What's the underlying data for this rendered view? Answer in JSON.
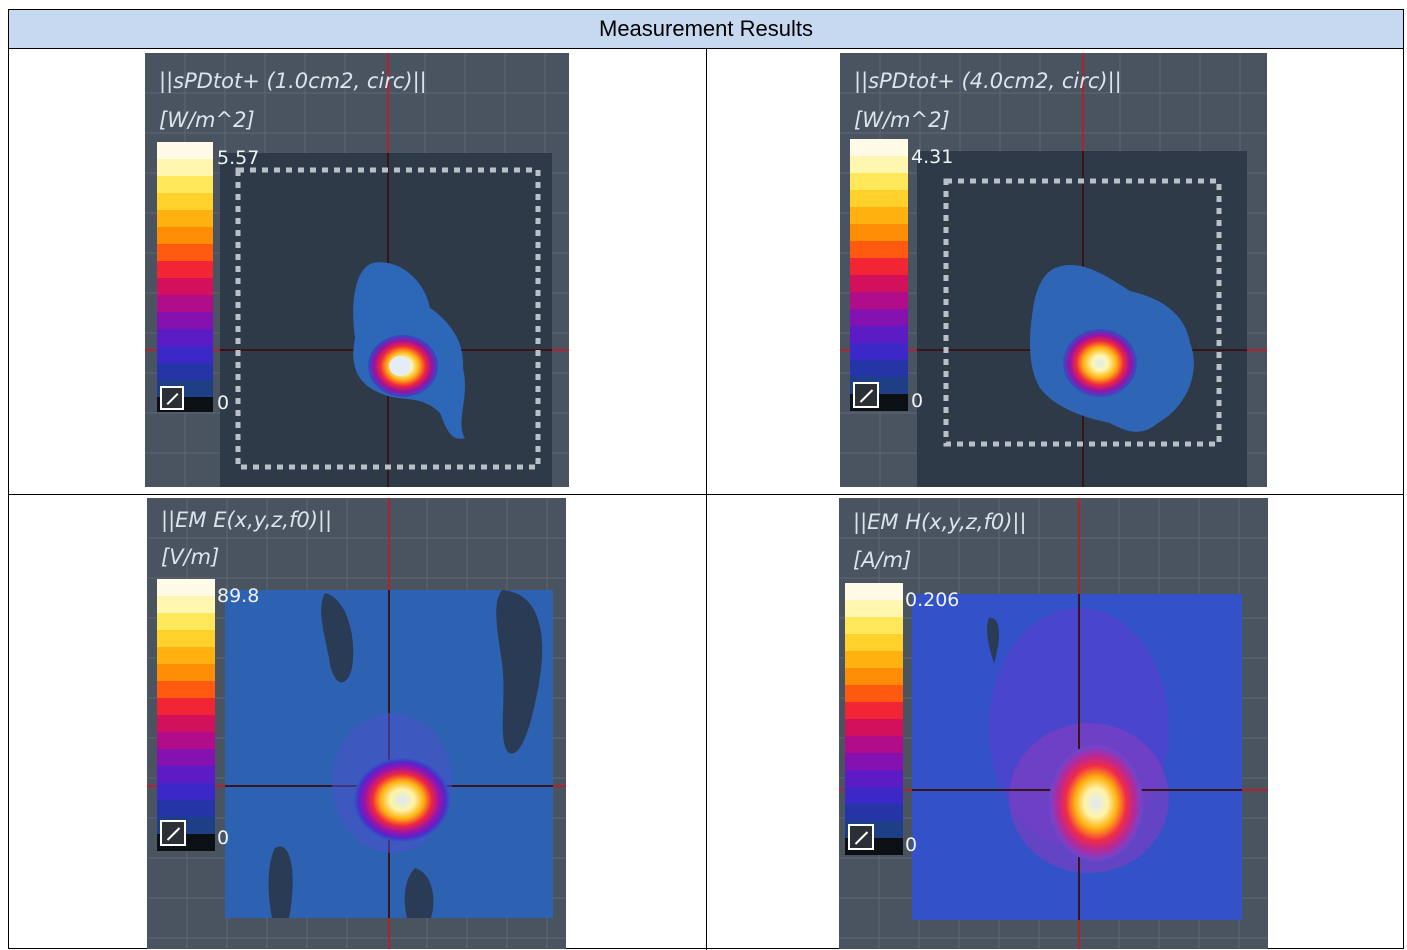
{
  "table": {
    "header": "Measurement Results"
  },
  "panels": [
    {
      "title": "||sPDtot+ (1.0cm2, circ)||",
      "unit": "[W/m^2]",
      "max_label": "5.57",
      "min_label": "0"
    },
    {
      "title": "||sPDtot+ (4.0cm2, circ)||",
      "unit": "[W/m^2]",
      "max_label": "4.31",
      "min_label": "0"
    },
    {
      "title": "||EM E(x,y,z,f0)||",
      "unit": "[V/m]",
      "max_label": "89.8",
      "min_label": "0"
    },
    {
      "title": "||EM H(x,y,z,f0)||",
      "unit": "[A/m]",
      "max_label": "0.206",
      "min_label": "0"
    }
  ],
  "colorbar": {
    "colors": [
      "#fffbe6",
      "#fff6b0",
      "#ffe75a",
      "#ffd12a",
      "#ffb10f",
      "#ff8c05",
      "#ff5a10",
      "#f22535",
      "#d3105c",
      "#b10c8a",
      "#8512b0",
      "#5d1bc6",
      "#3c28c8",
      "#2535a8",
      "#1d3f86"
    ],
    "icon": "toggle-icon"
  }
}
